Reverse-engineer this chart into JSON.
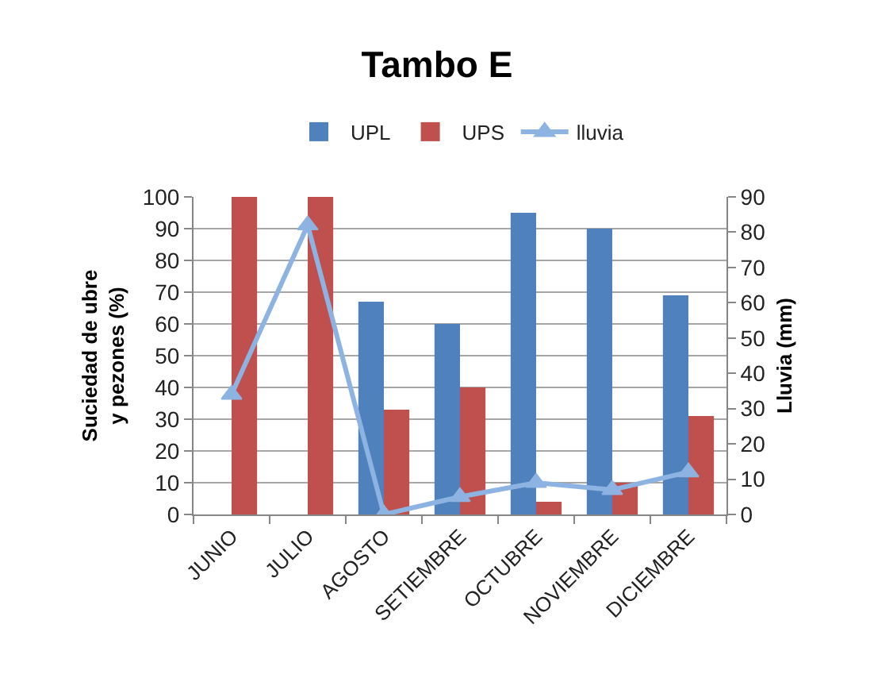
{
  "chart_data": {
    "type": "bar",
    "title": "Tambo E",
    "categories": [
      "JUNIO",
      "JULIO",
      "AGOSTO",
      "SETIEMBRE",
      "OCTUBRE",
      "NOVIEMBRE",
      "DICIEMBRE"
    ],
    "ylabel": "Suciedad de ubre y pezones (%)",
    "y2label": "Lluvia (mm)",
    "ylim": [
      0,
      100
    ],
    "yticks": [
      0,
      10,
      20,
      30,
      40,
      50,
      60,
      70,
      80,
      90,
      100
    ],
    "y2lim": [
      0,
      90
    ],
    "y2ticks": [
      0,
      10,
      20,
      30,
      40,
      50,
      60,
      70,
      80,
      90
    ],
    "grid": "y",
    "legend": "top",
    "series": [
      {
        "name": "UPL",
        "color": "#4f81bd",
        "values": [
          null,
          null,
          67,
          60,
          95,
          90,
          69
        ]
      },
      {
        "name": "UPS",
        "color": "#c0504d",
        "values": [
          100,
          100,
          33,
          40,
          4,
          10,
          31
        ]
      },
      {
        "name": "lluvia",
        "type": "line",
        "axis": "y2",
        "marker": "triangle",
        "color": "#8db3e2",
        "values": [
          34,
          82,
          0,
          5,
          9,
          7,
          12
        ]
      }
    ]
  }
}
